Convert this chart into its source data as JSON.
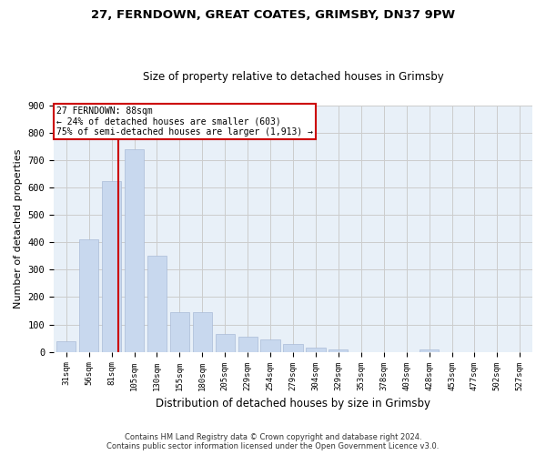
{
  "title_line1": "27, FERNDOWN, GREAT COATES, GRIMSBY, DN37 9PW",
  "title_line2": "Size of property relative to detached houses in Grimsby",
  "xlabel": "Distribution of detached houses by size in Grimsby",
  "ylabel": "Number of detached properties",
  "categories": [
    "31sqm",
    "56sqm",
    "81sqm",
    "105sqm",
    "130sqm",
    "155sqm",
    "180sqm",
    "205sqm",
    "229sqm",
    "254sqm",
    "279sqm",
    "304sqm",
    "329sqm",
    "353sqm",
    "378sqm",
    "403sqm",
    "428sqm",
    "453sqm",
    "477sqm",
    "502sqm",
    "527sqm"
  ],
  "values": [
    40,
    410,
    625,
    740,
    350,
    145,
    145,
    65,
    55,
    45,
    30,
    15,
    10,
    0,
    0,
    0,
    10,
    0,
    0,
    0,
    0
  ],
  "bar_color": "#c8d8ee",
  "bar_edge_color": "#aabbd8",
  "red_line_x": 2.28,
  "annotation_text_line1": "27 FERNDOWN: 88sqm",
  "annotation_text_line2": "← 24% of detached houses are smaller (603)",
  "annotation_text_line3": "75% of semi-detached houses are larger (1,913) →",
  "annotation_box_color": "#ffffff",
  "annotation_box_edge": "#cc0000",
  "red_line_color": "#cc0000",
  "grid_color": "#cccccc",
  "background_color": "#ffffff",
  "ax_background": "#e8f0f8",
  "footer_line1": "Contains HM Land Registry data © Crown copyright and database right 2024.",
  "footer_line2": "Contains public sector information licensed under the Open Government Licence v3.0.",
  "ylim": [
    0,
    900
  ],
  "yticks": [
    0,
    100,
    200,
    300,
    400,
    500,
    600,
    700,
    800,
    900
  ]
}
